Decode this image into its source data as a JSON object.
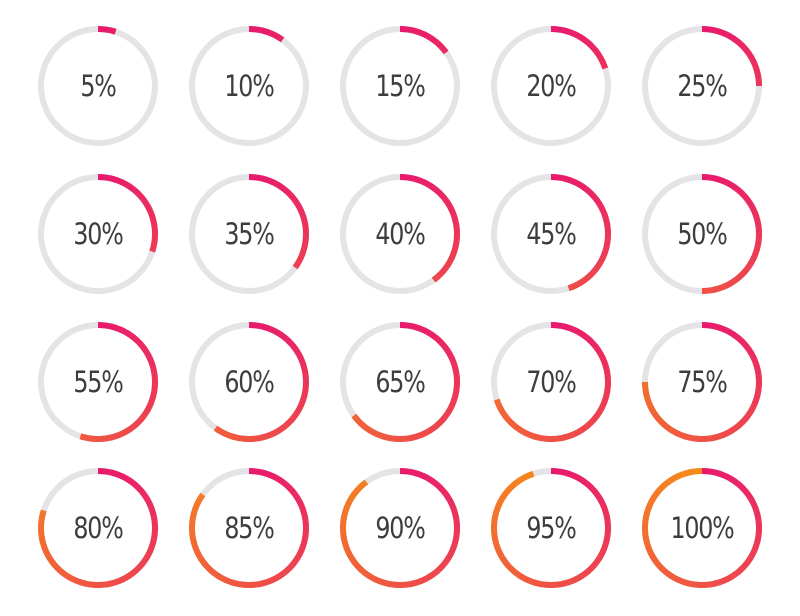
{
  "colors": {
    "track": "#e4e4e6",
    "arc_start": "#e8196e",
    "arc_end": "#f68c1a",
    "label": "#3d3d3f"
  },
  "rings": [
    {
      "value": 5,
      "label": "5%"
    },
    {
      "value": 10,
      "label": "10%"
    },
    {
      "value": 15,
      "label": "15%"
    },
    {
      "value": 20,
      "label": "20%"
    },
    {
      "value": 25,
      "label": "25%"
    },
    {
      "value": 30,
      "label": "30%"
    },
    {
      "value": 35,
      "label": "35%"
    },
    {
      "value": 40,
      "label": "40%"
    },
    {
      "value": 45,
      "label": "45%"
    },
    {
      "value": 50,
      "label": "50%"
    },
    {
      "value": 55,
      "label": "55%"
    },
    {
      "value": 60,
      "label": "60%"
    },
    {
      "value": 65,
      "label": "65%"
    },
    {
      "value": 70,
      "label": "70%"
    },
    {
      "value": 75,
      "label": "75%"
    },
    {
      "value": 80,
      "label": "80%"
    },
    {
      "value": 85,
      "label": "85%"
    },
    {
      "value": 90,
      "label": "90%"
    },
    {
      "value": 95,
      "label": "95%"
    },
    {
      "value": 100,
      "label": "100%"
    }
  ]
}
